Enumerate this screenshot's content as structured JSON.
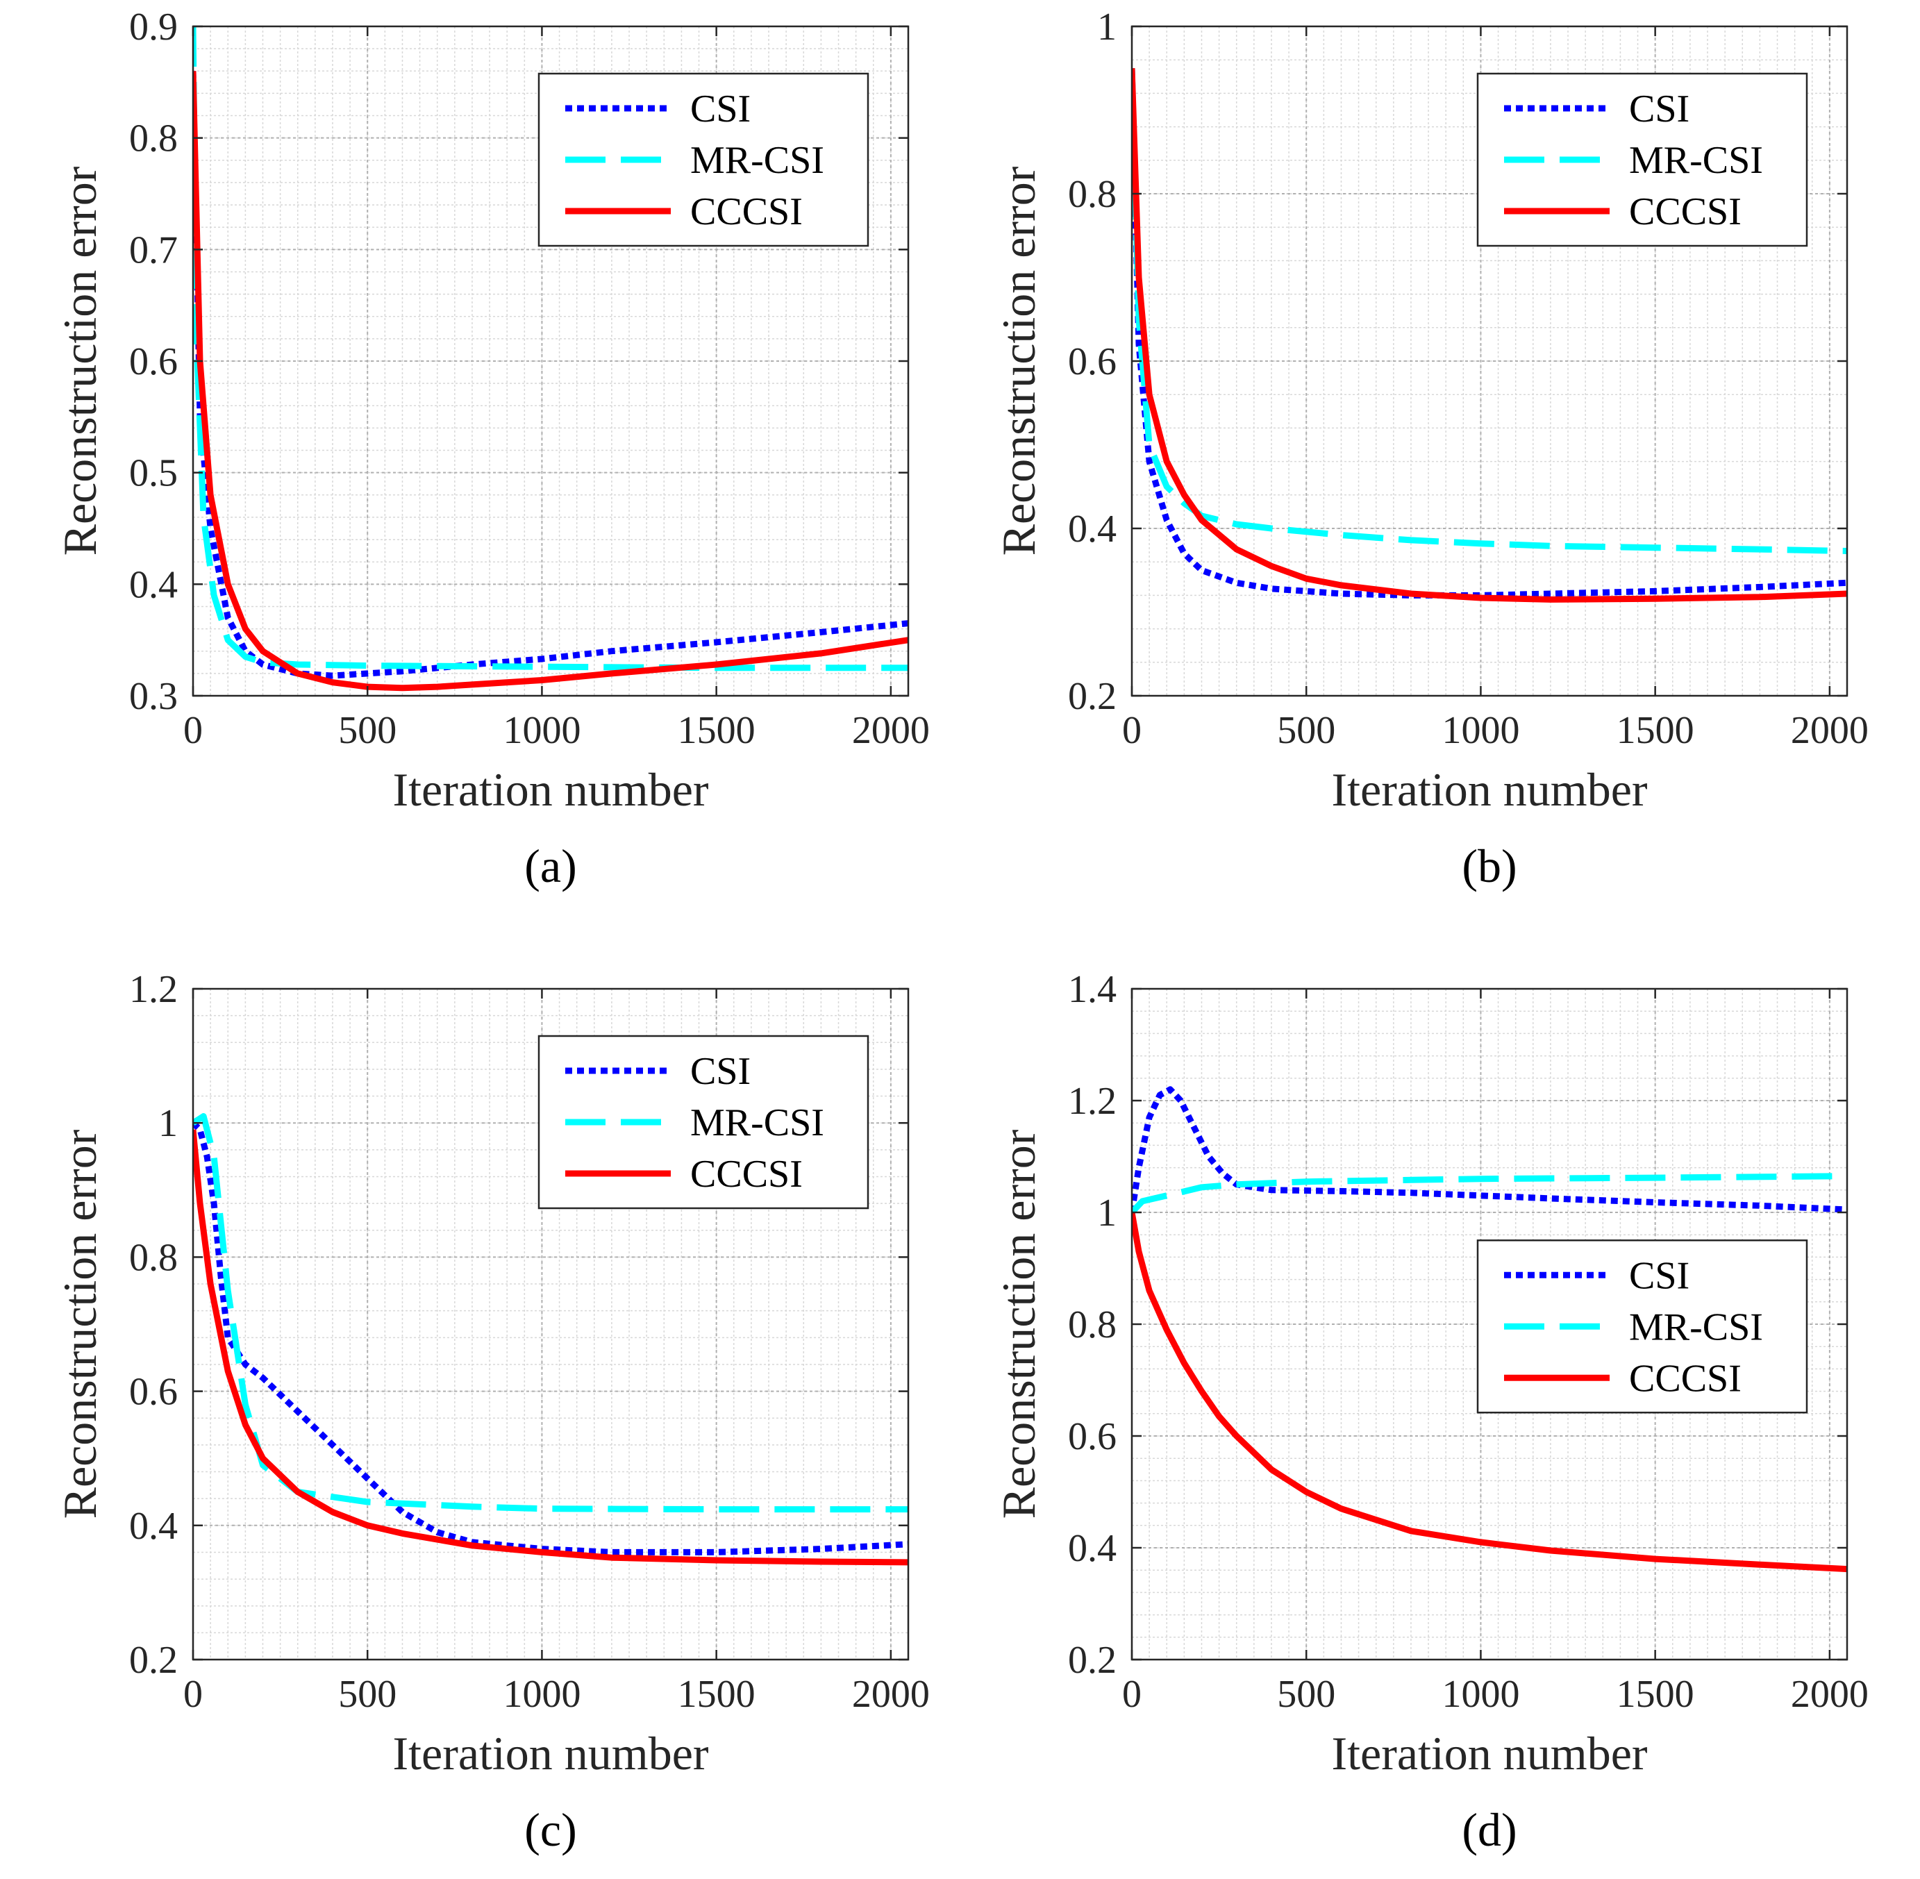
{
  "chart_data": [
    {
      "type": "line",
      "caption": "(a)",
      "xlabel": "Iteration number",
      "ylabel": "Reconstruction error",
      "xlim": [
        0,
        2050
      ],
      "ylim": [
        0.3,
        0.9
      ],
      "xticks": [
        0,
        500,
        1000,
        1500,
        2000
      ],
      "yticks": [
        0.3,
        0.4,
        0.5,
        0.6,
        0.7,
        0.8,
        0.9
      ],
      "ytick_labels": [
        "0.3",
        "0.4",
        "0.5",
        "0.6",
        "0.7",
        "0.8",
        "0.9"
      ],
      "legend_position": "top-right",
      "series": [
        {
          "name": "CSI",
          "color": "#0000ff",
          "style": "dotted",
          "x": [
            0,
            20,
            50,
            100,
            150,
            200,
            300,
            400,
            500,
            600,
            800,
            1000,
            1200,
            1500,
            1800,
            2050
          ],
          "y": [
            0.86,
            0.55,
            0.45,
            0.37,
            0.34,
            0.328,
            0.32,
            0.318,
            0.32,
            0.322,
            0.328,
            0.333,
            0.34,
            0.348,
            0.357,
            0.365
          ]
        },
        {
          "name": "MR-CSI",
          "color": "#00ffff",
          "style": "dashed",
          "x": [
            0,
            10,
            30,
            60,
            100,
            150,
            200,
            300,
            500,
            1000,
            1500,
            2050
          ],
          "y": [
            0.9,
            0.62,
            0.46,
            0.39,
            0.35,
            0.335,
            0.33,
            0.328,
            0.327,
            0.326,
            0.325,
            0.325
          ]
        },
        {
          "name": "CCCSI",
          "color": "#ff0000",
          "style": "solid",
          "x": [
            0,
            20,
            50,
            100,
            150,
            200,
            300,
            400,
            500,
            600,
            700,
            800,
            1000,
            1200,
            1500,
            1800,
            2050
          ],
          "y": [
            0.86,
            0.6,
            0.48,
            0.4,
            0.36,
            0.34,
            0.32,
            0.312,
            0.308,
            0.307,
            0.308,
            0.31,
            0.314,
            0.32,
            0.328,
            0.338,
            0.35
          ]
        }
      ]
    },
    {
      "type": "line",
      "caption": "(b)",
      "xlabel": "Iteration number",
      "ylabel": "Reconstruction error",
      "xlim": [
        0,
        2050
      ],
      "ylim": [
        0.2,
        1.0
      ],
      "xticks": [
        0,
        500,
        1000,
        1500,
        2000
      ],
      "yticks": [
        0.2,
        0.4,
        0.6,
        0.8,
        1.0
      ],
      "ytick_labels": [
        "0.2",
        "0.4",
        "0.6",
        "0.8",
        "1"
      ],
      "legend_position": "top-right",
      "series": [
        {
          "name": "CSI",
          "color": "#0000ff",
          "style": "dotted",
          "x": [
            0,
            20,
            50,
            100,
            150,
            200,
            300,
            400,
            600,
            800,
            1000,
            1200,
            1500,
            1800,
            2050
          ],
          "y": [
            0.95,
            0.62,
            0.48,
            0.41,
            0.37,
            0.35,
            0.335,
            0.328,
            0.322,
            0.32,
            0.32,
            0.322,
            0.325,
            0.33,
            0.335
          ]
        },
        {
          "name": "MR-CSI",
          "color": "#00ffff",
          "style": "dashed",
          "x": [
            0,
            20,
            50,
            100,
            150,
            200,
            300,
            400,
            600,
            800,
            1000,
            1200,
            1500,
            1800,
            2050
          ],
          "y": [
            0.95,
            0.65,
            0.5,
            0.45,
            0.43,
            0.415,
            0.405,
            0.4,
            0.392,
            0.386,
            0.382,
            0.379,
            0.377,
            0.375,
            0.373
          ]
        },
        {
          "name": "CCCSI",
          "color": "#ff0000",
          "style": "solid",
          "x": [
            0,
            20,
            50,
            100,
            150,
            200,
            300,
            400,
            500,
            600,
            800,
            1000,
            1200,
            1500,
            1800,
            2050
          ],
          "y": [
            0.95,
            0.7,
            0.56,
            0.48,
            0.44,
            0.41,
            0.375,
            0.355,
            0.34,
            0.332,
            0.322,
            0.317,
            0.315,
            0.316,
            0.318,
            0.322
          ]
        }
      ]
    },
    {
      "type": "line",
      "caption": "(c)",
      "xlabel": "Iteration number",
      "ylabel": "Reconstruction error",
      "xlim": [
        0,
        2050
      ],
      "ylim": [
        0.2,
        1.2
      ],
      "xticks": [
        0,
        500,
        1000,
        1500,
        2000
      ],
      "yticks": [
        0.2,
        0.4,
        0.6,
        0.8,
        1.0,
        1.2
      ],
      "ytick_labels": [
        "0.2",
        "0.4",
        "0.6",
        "0.8",
        "1",
        "1.2"
      ],
      "legend_position": "top-right",
      "series": [
        {
          "name": "CSI",
          "color": "#0000ff",
          "style": "dotted",
          "x": [
            0,
            20,
            40,
            60,
            80,
            100,
            150,
            200,
            300,
            400,
            500,
            600,
            700,
            800,
            1000,
            1200,
            1500,
            1800,
            2050
          ],
          "y": [
            1.0,
            0.99,
            0.95,
            0.88,
            0.77,
            0.68,
            0.64,
            0.62,
            0.57,
            0.52,
            0.47,
            0.42,
            0.39,
            0.375,
            0.365,
            0.36,
            0.36,
            0.365,
            0.372
          ]
        },
        {
          "name": "MR-CSI",
          "color": "#00ffff",
          "style": "dashed",
          "x": [
            0,
            30,
            60,
            100,
            150,
            200,
            300,
            500,
            800,
            1000,
            1500,
            2050
          ],
          "y": [
            1.0,
            1.01,
            0.95,
            0.75,
            0.58,
            0.49,
            0.45,
            0.435,
            0.428,
            0.425,
            0.424,
            0.424
          ]
        },
        {
          "name": "CCCSI",
          "color": "#ff0000",
          "style": "solid",
          "x": [
            0,
            20,
            50,
            100,
            150,
            200,
            300,
            400,
            500,
            600,
            800,
            1000,
            1200,
            1500,
            1800,
            2050
          ],
          "y": [
            0.99,
            0.88,
            0.76,
            0.63,
            0.55,
            0.5,
            0.45,
            0.42,
            0.4,
            0.388,
            0.37,
            0.36,
            0.352,
            0.348,
            0.346,
            0.345
          ]
        }
      ]
    },
    {
      "type": "line",
      "caption": "(d)",
      "xlabel": "Iteration number",
      "ylabel": "Reconstruction error",
      "xlim": [
        0,
        2050
      ],
      "ylim": [
        0.2,
        1.4
      ],
      "xticks": [
        0,
        500,
        1000,
        1500,
        2000
      ],
      "yticks": [
        0.2,
        0.4,
        0.6,
        0.8,
        1.0,
        1.2,
        1.4
      ],
      "ytick_labels": [
        "0.2",
        "0.4",
        "0.6",
        "0.8",
        "1",
        "1.2",
        "1.4"
      ],
      "legend_position": "center-right",
      "series": [
        {
          "name": "CSI",
          "color": "#0000ff",
          "style": "dotted",
          "x": [
            0,
            20,
            50,
            80,
            110,
            140,
            180,
            220,
            260,
            300,
            400,
            600,
            800,
            1000,
            1200,
            1500,
            1800,
            2050
          ],
          "y": [
            1.0,
            1.08,
            1.17,
            1.21,
            1.22,
            1.2,
            1.15,
            1.1,
            1.07,
            1.05,
            1.04,
            1.038,
            1.035,
            1.03,
            1.025,
            1.018,
            1.012,
            1.005
          ]
        },
        {
          "name": "MR-CSI",
          "color": "#00ffff",
          "style": "dashed",
          "x": [
            0,
            30,
            100,
            200,
            300,
            500,
            1000,
            1500,
            2050
          ],
          "y": [
            1.0,
            1.02,
            1.03,
            1.045,
            1.05,
            1.055,
            1.06,
            1.062,
            1.065
          ]
        },
        {
          "name": "CCCSI",
          "color": "#ff0000",
          "style": "solid",
          "x": [
            0,
            20,
            50,
            100,
            150,
            200,
            250,
            300,
            400,
            500,
            600,
            800,
            1000,
            1200,
            1500,
            1800,
            2050
          ],
          "y": [
            1.0,
            0.93,
            0.86,
            0.79,
            0.73,
            0.68,
            0.635,
            0.6,
            0.54,
            0.5,
            0.47,
            0.43,
            0.41,
            0.395,
            0.38,
            0.37,
            0.362
          ]
        }
      ]
    }
  ]
}
